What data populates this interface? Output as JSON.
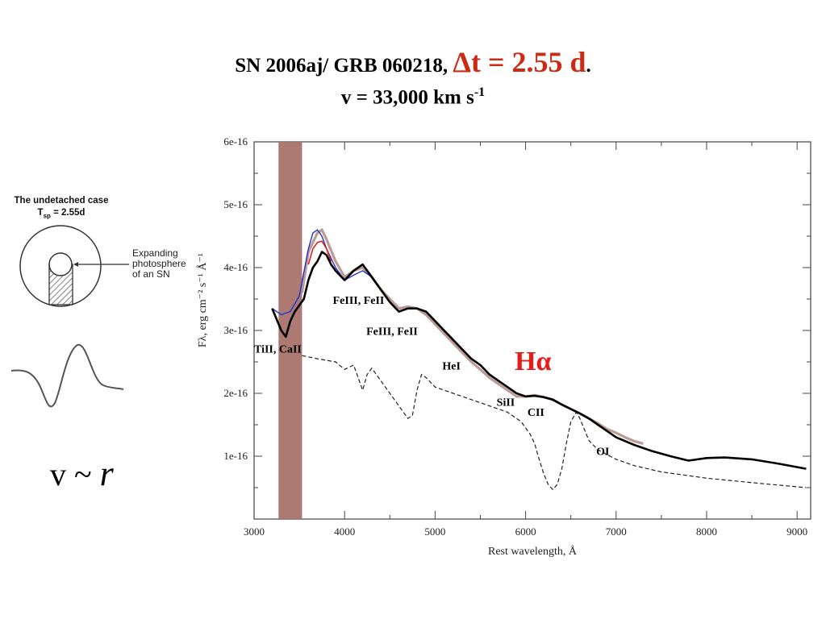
{
  "title": {
    "prefix": "SN 2006aj/ GRB 060218, ",
    "dt": "Δt = 2.55 d",
    "suffix": ".",
    "line2_main": "v = 33,000 km s",
    "line2_sup": "-1"
  },
  "schematic": {
    "case_title": "The undetached case",
    "tsp_main": "T",
    "tsp_sub": "sp",
    "tsp_value": " = 2.55d",
    "photosphere_label": "Expanding photosphere of an SN"
  },
  "relation": {
    "v": "v",
    "tilde": "~",
    "r": "r"
  },
  "chart_data": {
    "type": "line",
    "xlabel": "Rest wavelength, Å",
    "ylabel": "Fλ, erg cm⁻² s⁻¹ Å⁻¹",
    "xlim": [
      3000,
      9150
    ],
    "ylim": [
      0,
      6e-16
    ],
    "xticks": [
      3000,
      4000,
      5000,
      6000,
      7000,
      8000,
      9000
    ],
    "yticks": [
      1e-16,
      2e-16,
      3e-16,
      4e-16,
      5e-16,
      6e-16
    ],
    "ytick_labels": [
      "1e-16",
      "2e-16",
      "3e-16",
      "4e-16",
      "5e-16",
      "6e-16"
    ],
    "excluded_band": [
      3270,
      3530
    ],
    "colors": {
      "observed": "#b08a84",
      "model": "#000000",
      "blue": "#2233cc",
      "red": "#dd2222",
      "band": "#a8726c"
    },
    "series": [
      {
        "style": "observed",
        "x": [
          3530,
          3600,
          3700,
          3750,
          3800,
          3900,
          4000,
          4100,
          4200,
          4300,
          4400,
          4500,
          4600,
          4700,
          4800,
          4900,
          5000,
          5100,
          5200,
          5300,
          5400,
          5500,
          5600,
          5700,
          5800,
          5900,
          6000,
          6100,
          6200,
          6300,
          6400,
          6500,
          6600,
          6700,
          6800,
          6900,
          7000,
          7100,
          7200,
          7300
        ],
        "y": [
          3.6e-16,
          4.25e-16,
          4.55e-16,
          4.6e-16,
          4.45e-16,
          4.1e-16,
          3.85e-16,
          3.95e-16,
          4e-16,
          3.85e-16,
          3.65e-16,
          3.5e-16,
          3.35e-16,
          3.38e-16,
          3.35e-16,
          3.25e-16,
          3.1e-16,
          2.95e-16,
          2.8e-16,
          2.65e-16,
          2.5e-16,
          2.38e-16,
          2.25e-16,
          2.15e-16,
          2.05e-16,
          1.95e-16,
          1.95e-16,
          1.97e-16,
          1.94e-16,
          1.9e-16,
          1.82e-16,
          1.75e-16,
          1.68e-16,
          1.6e-16,
          1.52e-16,
          1.43e-16,
          1.37e-16,
          1.3e-16,
          1.24e-16,
          1.2e-16
        ]
      },
      {
        "style": "blue",
        "x": [
          3200,
          3300,
          3400,
          3500,
          3600,
          3650,
          3700,
          3750,
          3800,
          3900,
          4000,
          4100,
          4200,
          4300,
          4400
        ],
        "y": [
          3.35e-16,
          3.25e-16,
          3.3e-16,
          3.55e-16,
          4.3e-16,
          4.55e-16,
          4.6e-16,
          4.5e-16,
          4.3e-16,
          4e-16,
          3.8e-16,
          3.88e-16,
          3.95e-16,
          3.85e-16,
          3.65e-16
        ]
      },
      {
        "style": "red",
        "x": [
          3600,
          3650,
          3700,
          3750,
          3800,
          3850
        ],
        "y": [
          4.05e-16,
          4.3e-16,
          4.4e-16,
          4.42e-16,
          4.3e-16,
          4.1e-16
        ]
      },
      {
        "style": "model",
        "x": [
          3200,
          3300,
          3350,
          3400,
          3450,
          3500,
          3550,
          3600,
          3650,
          3700,
          3750,
          3800,
          3850,
          3900,
          4000,
          4100,
          4150,
          4200,
          4300,
          4400,
          4500,
          4600,
          4700,
          4800,
          4900,
          5000,
          5100,
          5200,
          5300,
          5400,
          5500,
          5600,
          5700,
          5800,
          5900,
          6000,
          6100,
          6200,
          6300,
          6400,
          6500,
          6600,
          6700,
          6800,
          6900,
          7000,
          7200,
          7400,
          7600,
          7800,
          8000,
          8200,
          8500,
          8800,
          9100
        ],
        "y": [
          3.35e-16,
          3e-16,
          2.9e-16,
          3.15e-16,
          3.3e-16,
          3.4e-16,
          3.5e-16,
          3.8e-16,
          4e-16,
          4.1e-16,
          4.25e-16,
          4.2e-16,
          4.05e-16,
          3.95e-16,
          3.8e-16,
          3.95e-16,
          4e-16,
          4.05e-16,
          3.85e-16,
          3.65e-16,
          3.45e-16,
          3.3e-16,
          3.35e-16,
          3.35e-16,
          3.3e-16,
          3.15e-16,
          3e-16,
          2.85e-16,
          2.7e-16,
          2.55e-16,
          2.45e-16,
          2.3e-16,
          2.2e-16,
          2.1e-16,
          2e-16,
          1.95e-16,
          1.96e-16,
          1.94e-16,
          1.9e-16,
          1.82e-16,
          1.75e-16,
          1.68e-16,
          1.6e-16,
          1.5e-16,
          1.4e-16,
          1.3e-16,
          1.18e-16,
          1.08e-16,
          1e-16,
          9.3e-17,
          9.7e-17,
          9.8e-17,
          9.5e-17,
          8.8e-17,
          8e-17
        ]
      },
      {
        "style": "dashed",
        "x": [
          3530,
          3700,
          3900,
          4000,
          4100,
          4150,
          4200,
          4250,
          4300,
          4400,
          4500,
          4600,
          4700,
          4750,
          4800,
          4850,
          4900,
          5000,
          5200,
          5400,
          5600,
          5800,
          5950,
          6050,
          6100,
          6150,
          6200,
          6250,
          6300,
          6350,
          6400,
          6450,
          6500,
          6560,
          6600,
          6700,
          6800,
          7000,
          7200,
          7500,
          8000,
          8500,
          9100
        ],
        "y": [
          2.6e-16,
          2.55e-16,
          2.5e-16,
          2.38e-16,
          2.45e-16,
          2.25e-16,
          2.05e-16,
          2.3e-16,
          2.4e-16,
          2.2e-16,
          2e-16,
          1.8e-16,
          1.6e-16,
          1.65e-16,
          2.05e-16,
          2.3e-16,
          2.25e-16,
          2.1e-16,
          2e-16,
          1.9e-16,
          1.8e-16,
          1.7e-16,
          1.55e-16,
          1.35e-16,
          1.2e-16,
          9.5e-17,
          7.2e-17,
          5.5e-17,
          4.7e-17,
          5.5e-17,
          8e-17,
          1.2e-16,
          1.55e-16,
          1.7e-16,
          1.6e-16,
          1.25e-16,
          1.1e-16,
          9.5e-17,
          8.5e-17,
          7.5e-17,
          6.5e-17,
          5.8e-17,
          5e-17
        ]
      }
    ],
    "annotations": [
      {
        "text": "FeIII, FeII",
        "x": 3870,
        "y": 3.42e-16
      },
      {
        "text": "FeIII, FeII",
        "x": 4240,
        "y": 2.93e-16
      },
      {
        "text": "TiII, CaII",
        "x": 3000,
        "y": 2.65e-16
      },
      {
        "text": "HeI",
        "x": 5080,
        "y": 2.38e-16
      },
      {
        "text": "SiII",
        "x": 5680,
        "y": 1.8e-16
      },
      {
        "text": "CII",
        "x": 6020,
        "y": 1.64e-16
      },
      {
        "text": "OI",
        "x": 6780,
        "y": 1.02e-16
      }
    ],
    "halpha_label": {
      "text": "Hα",
      "x": 5880,
      "y": 2.37e-16
    }
  }
}
